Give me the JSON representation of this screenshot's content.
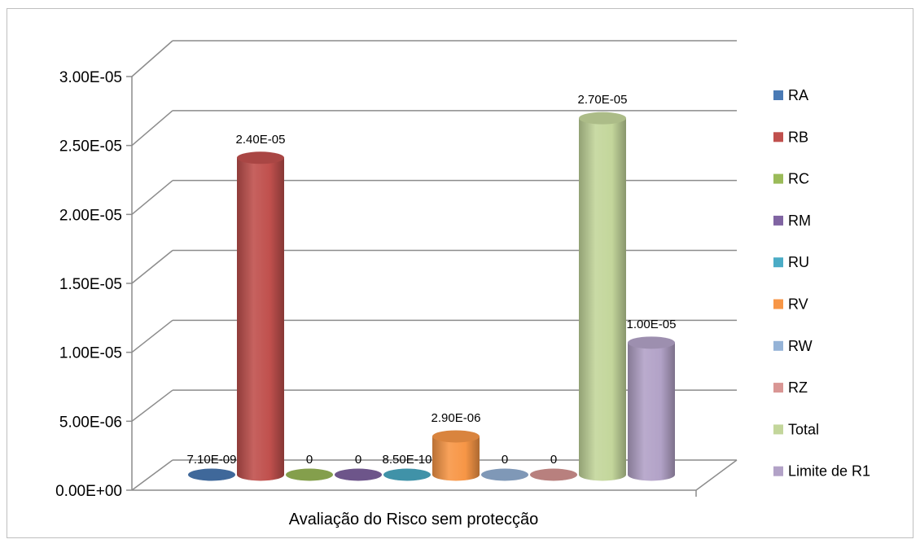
{
  "chart_data": {
    "type": "bar",
    "title": "",
    "xlabel": "",
    "ylabel": "",
    "categories": [
      "Avaliação do Risco sem protecção"
    ],
    "ylim": [
      0,
      3e-05
    ],
    "yticks": [
      "0.00E+00",
      "5.00E-06",
      "1.00E-05",
      "1.50E-05",
      "2.00E-05",
      "2.50E-05",
      "3.00E-05"
    ],
    "legend_position": "right",
    "grid": true,
    "style": "3d-cylinder",
    "series": [
      {
        "name": "RA",
        "value": 7.1e-09,
        "label": "7.10E-09",
        "color": "#4a7ab5"
      },
      {
        "name": "RB",
        "value": 2.4e-05,
        "label": "2.40E-05",
        "color": "#c0504d"
      },
      {
        "name": "RC",
        "value": 0,
        "label": "0",
        "color": "#9bbb59"
      },
      {
        "name": "RM",
        "value": 0,
        "label": "0",
        "color": "#8064a2"
      },
      {
        "name": "RU",
        "value": 8.5e-10,
        "label": "8.50E-10",
        "color": "#4bacc6"
      },
      {
        "name": "RV",
        "value": 2.9e-06,
        "label": "2.90E-06",
        "color": "#f79646"
      },
      {
        "name": "RW",
        "value": 0,
        "label": "0",
        "color": "#95b3d7"
      },
      {
        "name": "RZ",
        "value": 0,
        "label": "0",
        "color": "#d99694"
      },
      {
        "name": "Total",
        "value": 2.7e-05,
        "label": "2.70E-05",
        "color": "#c3d69b"
      },
      {
        "name": "Limite de R1",
        "value": 1e-05,
        "label": "1.00E-05",
        "color": "#b2a2c7"
      }
    ]
  }
}
